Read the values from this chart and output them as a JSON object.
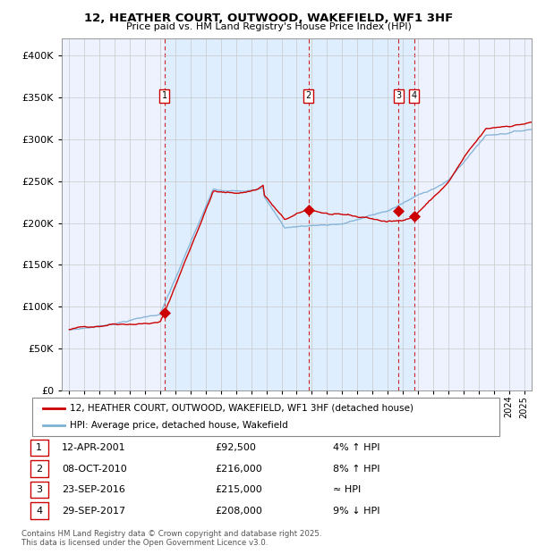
{
  "title": "12, HEATHER COURT, OUTWOOD, WAKEFIELD, WF1 3HF",
  "subtitle": "Price paid vs. HM Land Registry's House Price Index (HPI)",
  "legend_property": "12, HEATHER COURT, OUTWOOD, WAKEFIELD, WF1 3HF (detached house)",
  "legend_hpi": "HPI: Average price, detached house, Wakefield",
  "footer1": "Contains HM Land Registry data © Crown copyright and database right 2025.",
  "footer2": "This data is licensed under the Open Government Licence v3.0.",
  "transactions": [
    {
      "num": 1,
      "date": "12-APR-2001",
      "price": 92500,
      "rel": "4% ↑ HPI",
      "x_year": 2001.28
    },
    {
      "num": 2,
      "date": "08-OCT-2010",
      "price": 216000,
      "rel": "8% ↑ HPI",
      "x_year": 2010.78
    },
    {
      "num": 3,
      "date": "23-SEP-2016",
      "price": 215000,
      "rel": "≈ HPI",
      "x_year": 2016.73
    },
    {
      "num": 4,
      "date": "29-SEP-2017",
      "price": 208000,
      "rel": "9% ↓ HPI",
      "x_year": 2017.75
    }
  ],
  "xlim": [
    1994.5,
    2025.5
  ],
  "ylim": [
    0,
    420000
  ],
  "yticks": [
    0,
    50000,
    100000,
    150000,
    200000,
    250000,
    300000,
    350000,
    400000
  ],
  "color_red": "#cc0000",
  "color_blue": "#7eb0d4",
  "color_shading": "#ddeeff",
  "background_color": "#f0f4ff",
  "chart_bg": "#eef2ff"
}
